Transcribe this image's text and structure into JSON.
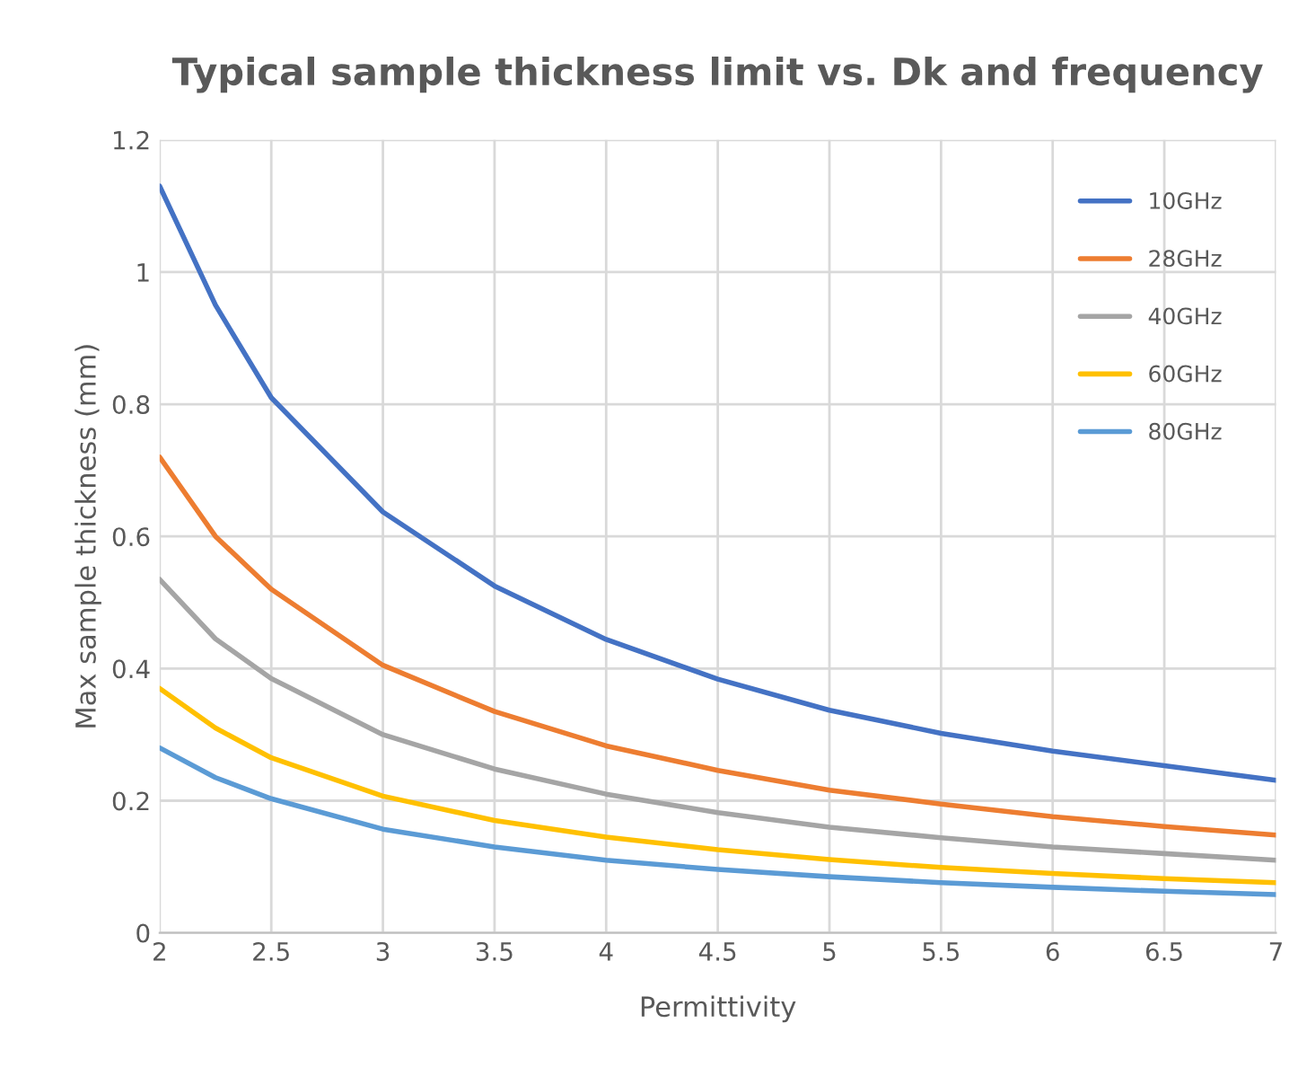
{
  "chart_data": {
    "type": "line",
    "title": "Typical sample thickness limit vs. Dk and frequency",
    "xlabel": "Permittivity",
    "ylabel": "Max sample thickness (mm)",
    "x": [
      2,
      2.25,
      2.5,
      3,
      3.5,
      4,
      4.5,
      5,
      5.5,
      6,
      6.5,
      7
    ],
    "series": [
      {
        "name": "10GHz",
        "color": "#4472c4",
        "values": [
          1.13,
          0.95,
          0.81,
          0.637,
          0.525,
          0.444,
          0.384,
          0.337,
          0.302,
          0.275,
          0.253,
          0.231
        ]
      },
      {
        "name": "28GHz",
        "color": "#ed7d31",
        "values": [
          0.72,
          0.6,
          0.52,
          0.405,
          0.335,
          0.283,
          0.246,
          0.216,
          0.195,
          0.176,
          0.161,
          0.148
        ]
      },
      {
        "name": "40GHz",
        "color": "#a5a5a5",
        "values": [
          0.535,
          0.445,
          0.385,
          0.3,
          0.248,
          0.21,
          0.182,
          0.16,
          0.144,
          0.13,
          0.12,
          0.11
        ]
      },
      {
        "name": "60GHz",
        "color": "#ffc000",
        "values": [
          0.37,
          0.31,
          0.265,
          0.207,
          0.17,
          0.145,
          0.126,
          0.111,
          0.099,
          0.09,
          0.082,
          0.076
        ]
      },
      {
        "name": "80GHz",
        "color": "#5b9bd5",
        "values": [
          0.28,
          0.235,
          0.203,
          0.157,
          0.13,
          0.11,
          0.096,
          0.085,
          0.076,
          0.069,
          0.063,
          0.058
        ]
      }
    ],
    "xlim": [
      2,
      7
    ],
    "xticks": [
      2,
      2.5,
      3,
      3.5,
      4,
      4.5,
      5,
      5.5,
      6,
      6.5,
      7
    ],
    "ylim": [
      0,
      1.2
    ],
    "yticks": [
      0,
      0.2,
      0.4,
      0.6,
      0.8,
      1,
      1.2
    ],
    "grid": true,
    "legend": "top right",
    "marker": "none",
    "line_style": "solid"
  }
}
